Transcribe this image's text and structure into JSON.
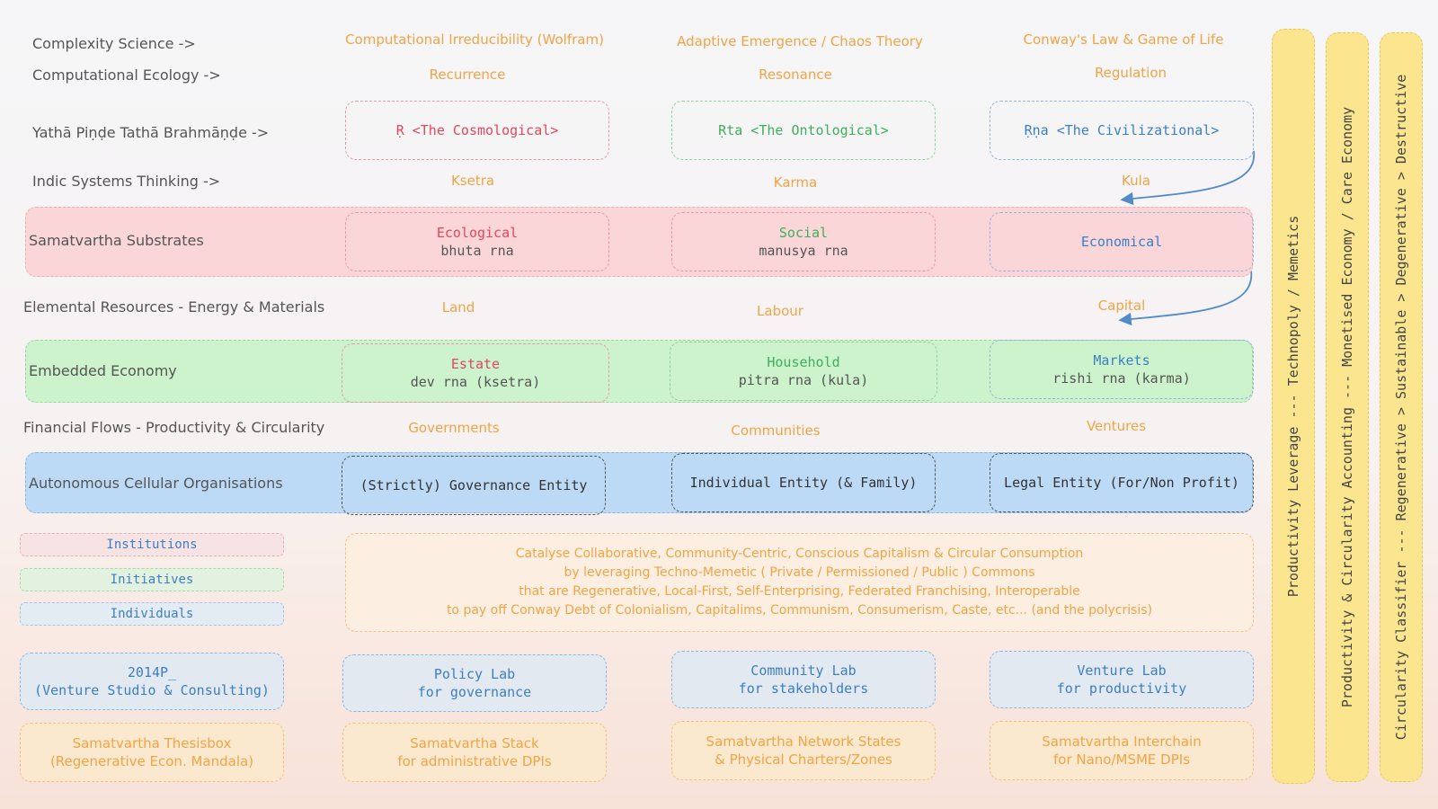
{
  "row_labels": {
    "complexity": "Complexity Science ->",
    "ecology": "Computational Ecology ->",
    "yatha": "Yathā Piṇḍe Tathā Brahmāṇḍe ->",
    "indic": "Indic Systems Thinking ->",
    "substrates": "Samatvartha Substrates",
    "elemental": "Elemental Resources - Energy & Materials",
    "embedded": "Embedded Economy",
    "financial": "Financial Flows - Productivity & Circularity",
    "autonomous": "Autonomous Cellular Organisations"
  },
  "complexity": [
    "Computational Irreducibility (Wolfram)",
    "Adaptive Emergence / Chaos Theory",
    "Conway's Law & Game of Life"
  ],
  "ecology": [
    "Recurrence",
    "Resonance",
    "Regulation"
  ],
  "yatha_boxes": [
    "Ṛ <The Cosmological>",
    "Ṛta <The Ontological>",
    "Ṛṇa <The Civilizational>"
  ],
  "indic": [
    "Ksetra",
    "Karma",
    "Kula"
  ],
  "substrates": [
    {
      "title": "Ecological",
      "sub": "bhuta rna"
    },
    {
      "title": "Social",
      "sub": "manusya rna"
    },
    {
      "title": "Economical",
      "sub": ""
    }
  ],
  "elemental": [
    "Land",
    "Labour",
    "Capital"
  ],
  "embedded": [
    {
      "title": "Estate",
      "sub": "dev rna (ksetra)"
    },
    {
      "title": "Household",
      "sub": "pitra rna (kula)"
    },
    {
      "title": "Markets",
      "sub": "rishi rna (karma)"
    }
  ],
  "financial": [
    "Governments",
    "Communities",
    "Ventures"
  ],
  "autonomous": [
    "(Strictly) Governance Entity",
    "Individual Entity (& Family)",
    "Legal Entity (For/Non Profit)"
  ],
  "legend": [
    "Institutions",
    "Initiatives",
    "Individuals"
  ],
  "manifesto": [
    "Catalyse Collaborative, Community-Centric, Conscious Capitalism & Circular Consumption",
    "by leveraging Techno-Memetic ( Private / Permissioned / Public ) Commons",
    "that are Regenerative, Local-First, Self-Enterprising, Federated Franchising, Interoperable",
    "to pay off Conway Debt of Colonialism, Capitalims, Communism, Consumerism, Caste, etc... (and the polycrisis)"
  ],
  "labs": [
    {
      "line1": "2014P_",
      "line2": "(Venture Studio & Consulting)"
    },
    {
      "line1": "Policy Lab",
      "line2": "for governance"
    },
    {
      "line1": "Community Lab",
      "line2": "for stakeholders"
    },
    {
      "line1": "Venture Lab",
      "line2": "for productivity"
    }
  ],
  "stacks": [
    {
      "line1": "Samatvartha Thesisbox",
      "line2": "(Regenerative Econ. Mandala)"
    },
    {
      "line1": "Samatvartha Stack",
      "line2": "for administrative DPIs"
    },
    {
      "line1": "Samatvartha Network States",
      "line2": "& Physical Charters/Zones"
    },
    {
      "line1": "Samatvartha Interchain",
      "line2": "for Nano/MSME DPIs"
    }
  ],
  "vertical": [
    "Productivity Leverage --- Technopoly / Memetics",
    "Productivity & Circularity Accounting --- Monetised Economy / Care Economy",
    "Circularity Classifier --- Regenerative > Sustainable > Degenerative > Destructive"
  ],
  "colors": {
    "orange": "#f0a445",
    "red": "#e0485c",
    "green": "#3fae5b",
    "blue": "#3b7fc4",
    "pink_band": "#fbd6d8",
    "green_band": "#cdf3cd",
    "blue_band": "#bcdaf6",
    "yellow_column": "#fbe58f"
  }
}
